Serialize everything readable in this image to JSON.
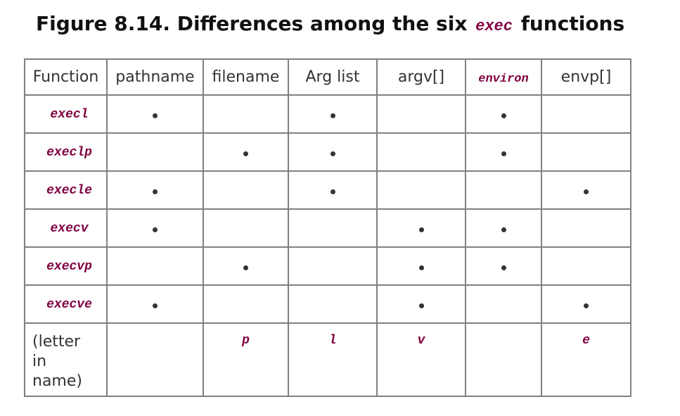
{
  "title": {
    "prefix": "Figure 8.14. Differences among the six",
    "code": "exec",
    "suffix": "functions"
  },
  "table": {
    "headers": [
      "Function",
      "pathname",
      "filename",
      "Arg list",
      "argv[]",
      "environ",
      "envp[]"
    ],
    "header_code_columns": [
      5
    ],
    "rows": [
      {
        "name": "execl",
        "marks": [
          true,
          false,
          true,
          false,
          true,
          false
        ]
      },
      {
        "name": "execlp",
        "marks": [
          false,
          true,
          true,
          false,
          true,
          false
        ]
      },
      {
        "name": "execle",
        "marks": [
          true,
          false,
          true,
          false,
          false,
          true
        ]
      },
      {
        "name": "execv",
        "marks": [
          true,
          false,
          false,
          true,
          true,
          false
        ]
      },
      {
        "name": "execvp",
        "marks": [
          false,
          true,
          false,
          true,
          true,
          false
        ]
      },
      {
        "name": "execve",
        "marks": [
          true,
          false,
          false,
          true,
          false,
          true
        ]
      }
    ],
    "letter_row": {
      "label": "(letter in name)",
      "letters": [
        "",
        "p",
        "l",
        "v",
        "",
        "e"
      ]
    }
  }
}
